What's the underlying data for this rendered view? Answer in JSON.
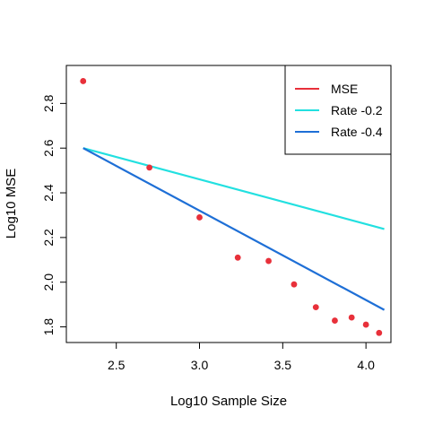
{
  "chart_data": {
    "type": "scatter",
    "title": "",
    "xlabel": "Log10 Sample Size",
    "ylabel": "Log10 MSE",
    "xlim": [
      2.2,
      4.15
    ],
    "ylim": [
      1.73,
      2.97
    ],
    "xticks": [
      2.5,
      3.0,
      3.5,
      4.0
    ],
    "xtick_labels": [
      "2.5",
      "3.0",
      "3.5",
      "4.0"
    ],
    "yticks": [
      1.8,
      2.0,
      2.2,
      2.4,
      2.6,
      2.8
    ],
    "ytick_labels": [
      "1.8",
      "2.0",
      "2.2",
      "2.4",
      "2.6",
      "2.8"
    ],
    "grid": false,
    "legend_position": "top-right",
    "legend": [
      {
        "label": "MSE",
        "color": "#e8303a"
      },
      {
        "label": "Rate -0.2",
        "color": "#22e0e0"
      },
      {
        "label": "Rate -0.4",
        "color": "#1e6fd6"
      }
    ],
    "series": [
      {
        "name": "MSE",
        "kind": "points",
        "color": "#e8303a",
        "x": [
          2.301,
          2.699,
          3.0,
          3.23,
          3.415,
          3.568,
          3.699,
          3.813,
          3.914,
          4.0,
          4.079
        ],
        "y": [
          2.9,
          2.513,
          2.29,
          2.11,
          2.095,
          1.99,
          1.888,
          1.828,
          1.842,
          1.81,
          1.773
        ]
      },
      {
        "name": "Rate -0.2",
        "kind": "line",
        "color": "#22e0e0",
        "x": [
          2.301,
          4.11
        ],
        "y": [
          2.6,
          2.238
        ]
      },
      {
        "name": "Rate -0.4",
        "kind": "line",
        "color": "#1e6fd6",
        "x": [
          2.301,
          4.11
        ],
        "y": [
          2.6,
          1.876
        ]
      }
    ]
  }
}
